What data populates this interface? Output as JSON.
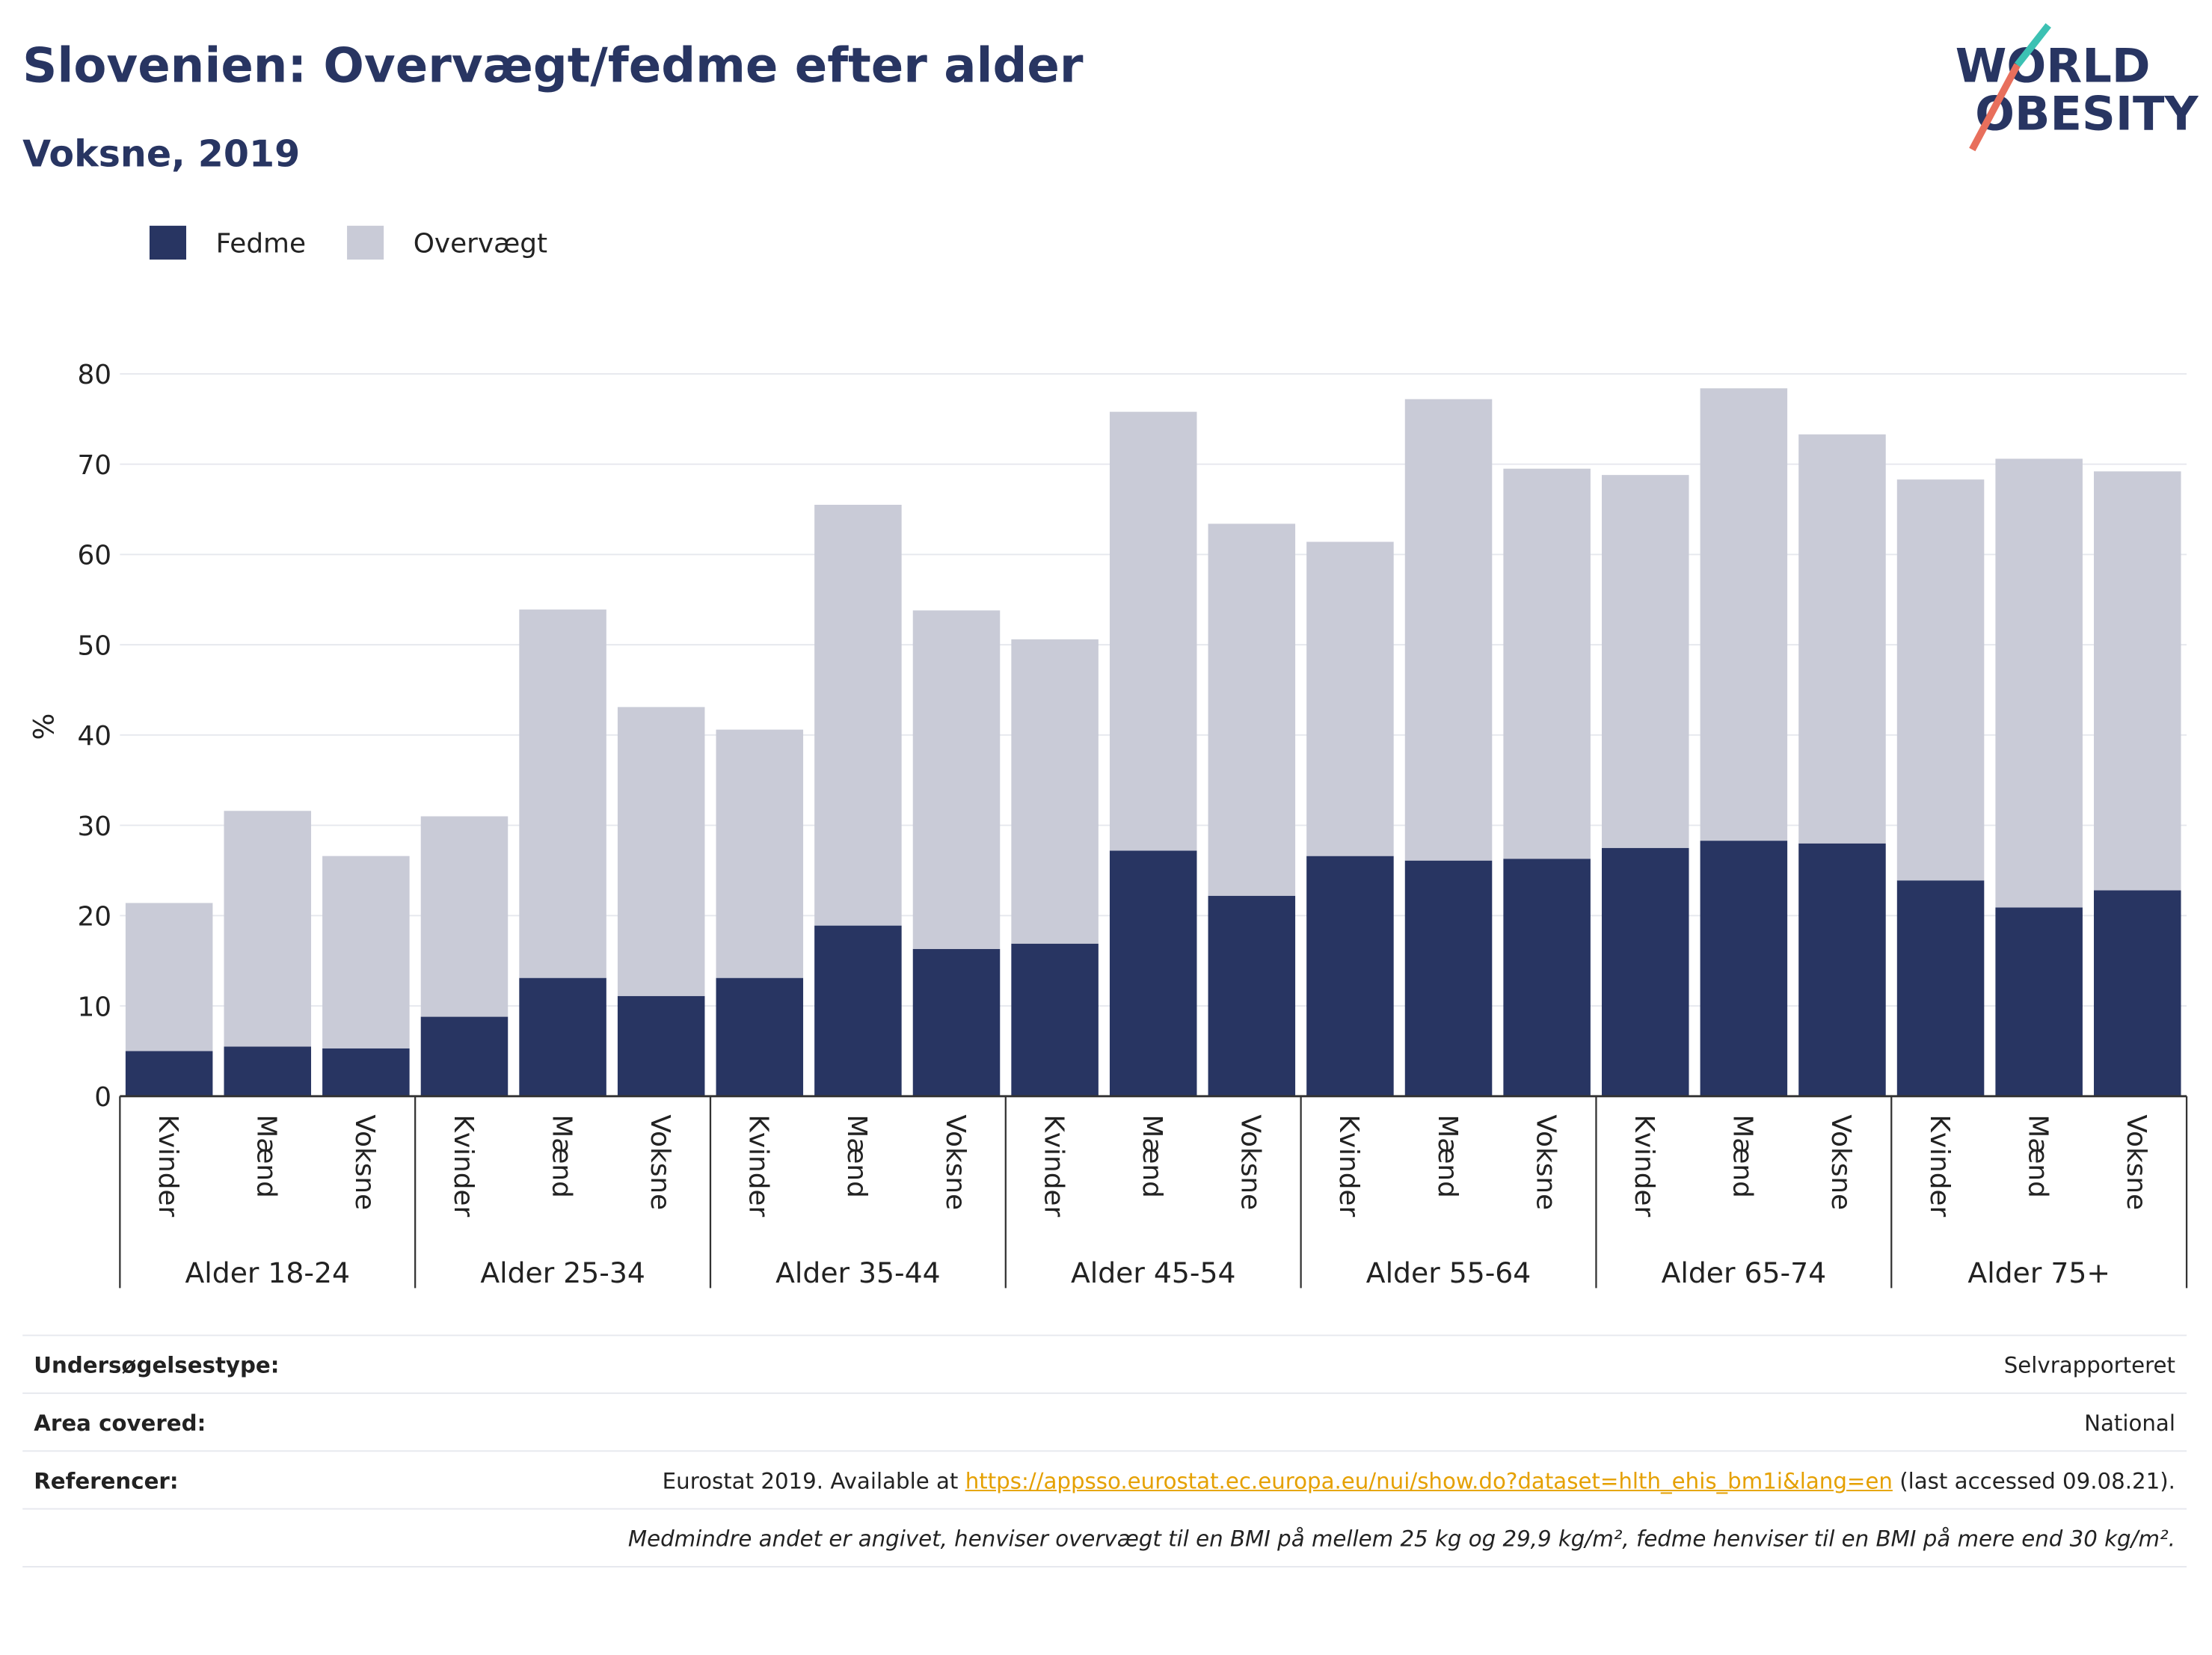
{
  "chart_data": {
    "type": "stacked-bar",
    "title": "Slovenien: Overvægt/fedme efter alder",
    "subtitle": "Voksne, 2019",
    "y_label": "%",
    "categories": [
      "Kvinder",
      "Mænd",
      "Voksne",
      "Kvinder",
      "Mænd",
      "Voksne",
      "Kvinder",
      "Mænd",
      "Voksne",
      "Kvinder",
      "Mænd",
      "Voksne",
      "Kvinder",
      "Mænd",
      "Voksne",
      "Kvinder",
      "Mænd",
      "Voksne",
      "Kvinder",
      "Mænd",
      "Voksne"
    ],
    "groups": [
      "Alder 18-24",
      "Alder 25-34",
      "Alder 35-44",
      "Alder 45-54",
      "Alder 55-64",
      "Alder 65-74",
      "Alder 75+"
    ],
    "series": [
      {
        "name": "Fedme",
        "color": "#283562",
        "values": [
          5.0,
          5.5,
          5.3,
          8.8,
          13.1,
          11.1,
          13.1,
          18.9,
          16.3,
          16.9,
          27.2,
          22.2,
          26.6,
          26.1,
          26.3,
          27.5,
          28.3,
          28.0,
          23.9,
          20.9,
          22.8
        ]
      },
      {
        "name": "Overvægt",
        "color": "#c9cbd7",
        "values": [
          16.4,
          26.1,
          21.3,
          22.2,
          40.8,
          32.0,
          27.5,
          46.6,
          37.5,
          33.7,
          48.6,
          41.2,
          34.8,
          51.1,
          43.2,
          41.3,
          50.1,
          45.3,
          44.4,
          49.7,
          46.4
        ]
      }
    ],
    "ylim": [
      0,
      80
    ],
    "yticks": [
      0,
      10,
      20,
      30,
      40,
      50,
      60,
      70,
      80
    ],
    "grid": true,
    "legend": "top-left"
  },
  "logo": {
    "lines": [
      "WORLD",
      "OBESITY"
    ]
  },
  "info": {
    "rows": [
      {
        "label": "Undersøgelsestype:",
        "value": "Selvrapporteret"
      },
      {
        "label": "Area covered:",
        "value": "National"
      }
    ],
    "reference": {
      "label": "Referencer:",
      "text": "Eurostat 2019. Available at",
      "link": "https://appsso.eurostat.ec.europa.eu/nui/show.do?dataset=hlth_ehis_bm1i&lang=en",
      "after": "(last accessed 09.08.21)."
    },
    "note": "Medmindre andet er angivet, henviser overvægt til en BMI på mellem 25 kg og 29,9 kg/m², fedme henviser til en BMI på mere end 30 kg/m²."
  }
}
